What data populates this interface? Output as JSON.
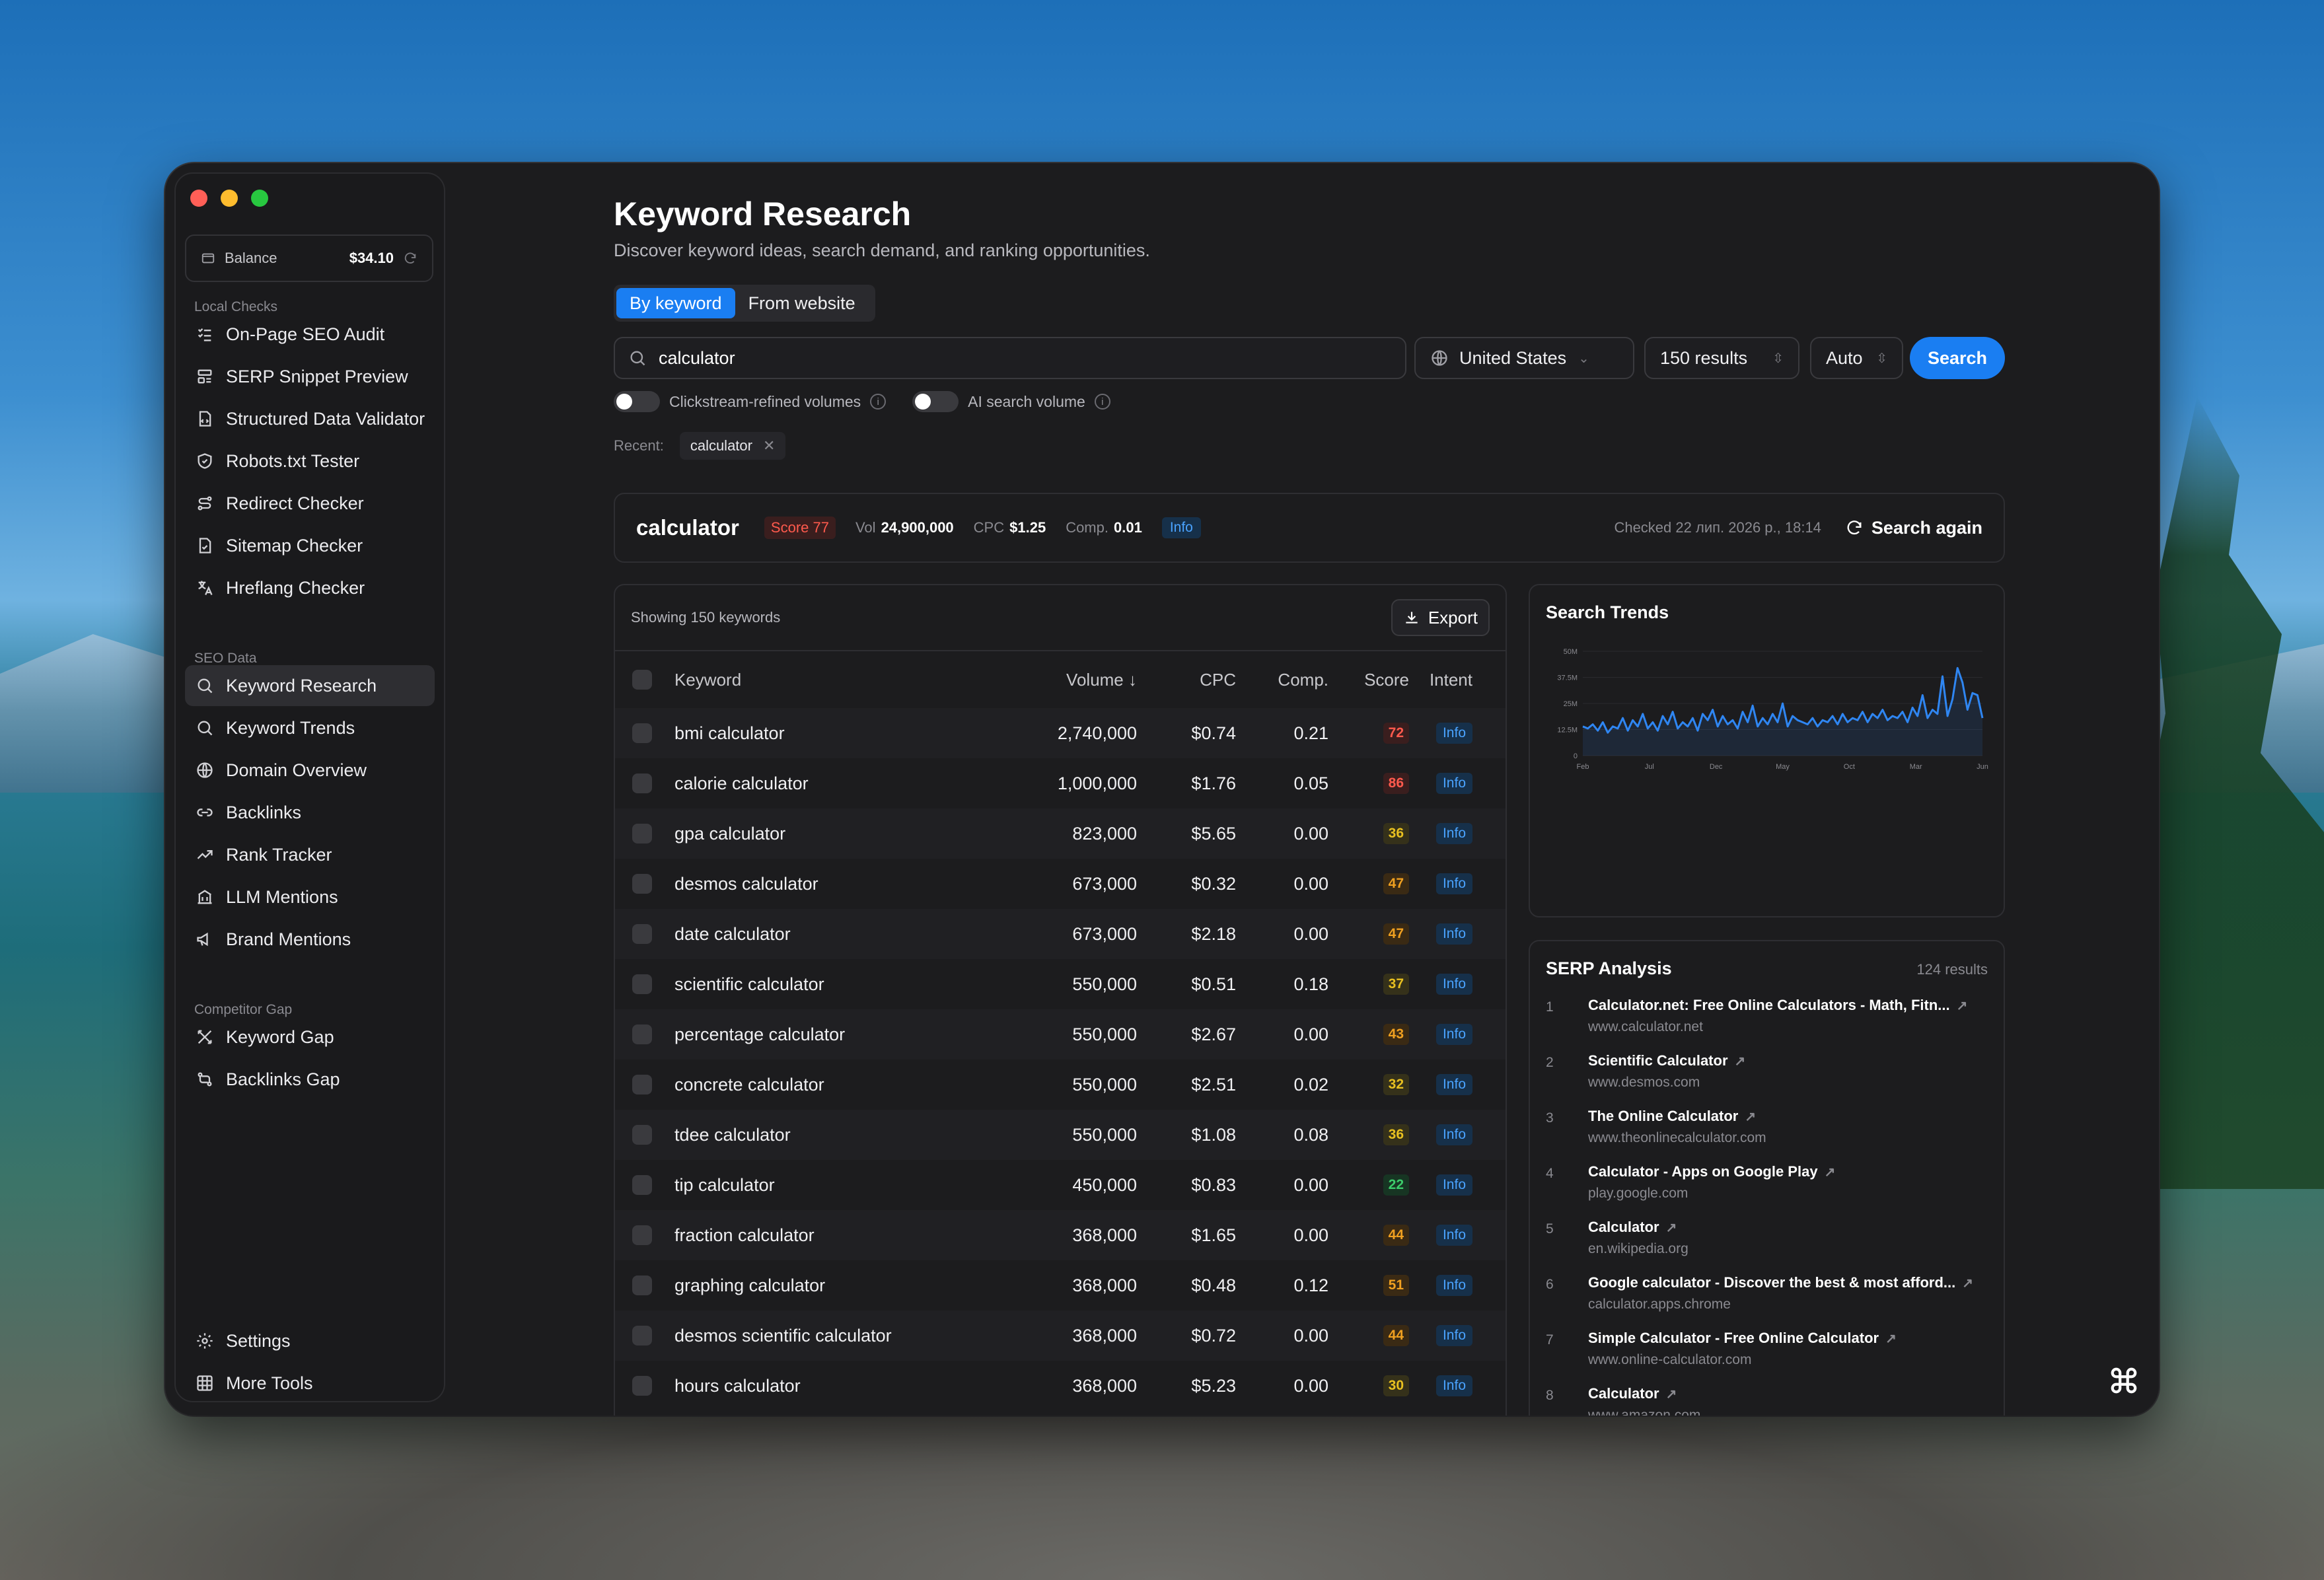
{
  "sidebar": {
    "balance_label": "Balance",
    "balance_value": "$34.10",
    "sections": [
      {
        "label": "Local Checks"
      },
      {
        "label": "SEO Data"
      },
      {
        "label": "Competitor Gap"
      }
    ],
    "local_checks": [
      "On-Page SEO Audit",
      "SERP Snippet Preview",
      "Structured Data Validator",
      "Robots.txt Tester",
      "Redirect Checker",
      "Sitemap Checker",
      "Hreflang Checker"
    ],
    "seo_data": [
      "Keyword Research",
      "Keyword Trends",
      "Domain Overview",
      "Backlinks",
      "Rank Tracker",
      "LLM Mentions",
      "Brand Mentions"
    ],
    "competitor_gap": [
      "Keyword Gap",
      "Backlinks Gap"
    ],
    "bottom": [
      "Settings",
      "More Tools"
    ]
  },
  "header": {
    "title": "Keyword Research",
    "subtitle": "Discover keyword ideas, search demand, and ranking opportunities."
  },
  "mode_tabs": [
    "By keyword",
    "From website"
  ],
  "search": {
    "value": "calculator",
    "country": "United States",
    "results": "150 results",
    "mode": "Auto",
    "button": "Search"
  },
  "toggles": {
    "clickstream": "Clickstream-refined volumes",
    "ai_volume": "AI search volume"
  },
  "recent": {
    "label": "Recent:",
    "chip": "calculator"
  },
  "summary": {
    "keyword": "calculator",
    "score": "Score 77",
    "vol_label": "Vol",
    "vol": "24,900,000",
    "cpc_label": "CPC",
    "cpc": "$1.25",
    "comp_label": "Comp.",
    "comp": "0.01",
    "intent": "Info",
    "checked": "Checked 22 лип. 2026 р., 18:14",
    "search_again": "Search again"
  },
  "table": {
    "showing": "Showing 150 keywords",
    "export": "Export",
    "headers": {
      "keyword": "Keyword",
      "volume": "Volume ↓",
      "cpc": "CPC",
      "comp": "Comp.",
      "score": "Score",
      "intent": "Intent"
    },
    "rows": [
      {
        "keyword": "bmi calculator",
        "volume": "2,740,000",
        "cpc": "$0.74",
        "comp": "0.21",
        "score": "72",
        "intent": "Info"
      },
      {
        "keyword": "calorie calculator",
        "volume": "1,000,000",
        "cpc": "$1.76",
        "comp": "0.05",
        "score": "86",
        "intent": "Info"
      },
      {
        "keyword": "gpa calculator",
        "volume": "823,000",
        "cpc": "$5.65",
        "comp": "0.00",
        "score": "36",
        "intent": "Info"
      },
      {
        "keyword": "desmos calculator",
        "volume": "673,000",
        "cpc": "$0.32",
        "comp": "0.00",
        "score": "47",
        "intent": "Info"
      },
      {
        "keyword": "date calculator",
        "volume": "673,000",
        "cpc": "$2.18",
        "comp": "0.00",
        "score": "47",
        "intent": "Info"
      },
      {
        "keyword": "scientific calculator",
        "volume": "550,000",
        "cpc": "$0.51",
        "comp": "0.18",
        "score": "37",
        "intent": "Info"
      },
      {
        "keyword": "percentage calculator",
        "volume": "550,000",
        "cpc": "$2.67",
        "comp": "0.00",
        "score": "43",
        "intent": "Info"
      },
      {
        "keyword": "concrete calculator",
        "volume": "550,000",
        "cpc": "$2.51",
        "comp": "0.02",
        "score": "32",
        "intent": "Info"
      },
      {
        "keyword": "tdee calculator",
        "volume": "550,000",
        "cpc": "$1.08",
        "comp": "0.08",
        "score": "36",
        "intent": "Info"
      },
      {
        "keyword": "tip calculator",
        "volume": "450,000",
        "cpc": "$0.83",
        "comp": "0.00",
        "score": "22",
        "intent": "Info"
      },
      {
        "keyword": "fraction calculator",
        "volume": "368,000",
        "cpc": "$1.65",
        "comp": "0.00",
        "score": "44",
        "intent": "Info"
      },
      {
        "keyword": "graphing calculator",
        "volume": "368,000",
        "cpc": "$0.48",
        "comp": "0.12",
        "score": "51",
        "intent": "Info"
      },
      {
        "keyword": "desmos scientific calculator",
        "volume": "368,000",
        "cpc": "$0.72",
        "comp": "0.00",
        "score": "44",
        "intent": "Info"
      },
      {
        "keyword": "hours calculator",
        "volume": "368,000",
        "cpc": "$5.23",
        "comp": "0.00",
        "score": "30",
        "intent": "Info"
      }
    ]
  },
  "score_colors": {
    "red": "#ff5a4d",
    "orange": "#f0a020",
    "yellow": "#e8c020",
    "green": "#3ccb6a"
  },
  "trends": {
    "title": "Search Trends",
    "y_ticks": [
      "50M",
      "37.5M",
      "25M",
      "12.5M",
      "0"
    ],
    "x_ticks": [
      "Feb",
      "Jul",
      "Dec",
      "May",
      "Oct",
      "Mar",
      "Jun"
    ],
    "line_color": "#2f86f2",
    "values": [
      14,
      13,
      15,
      12,
      16,
      11,
      14,
      13,
      18,
      12,
      17,
      14,
      20,
      13,
      16,
      12,
      19,
      15,
      21,
      13,
      16,
      14,
      18,
      12,
      20,
      17,
      22,
      14,
      19,
      15,
      17,
      13,
      21,
      16,
      24,
      14,
      18,
      15,
      20,
      16,
      25,
      14,
      19,
      17,
      16,
      15,
      18,
      14,
      17,
      16,
      19,
      15,
      20,
      16,
      18,
      17,
      21,
      16,
      20,
      18,
      22,
      17,
      19,
      18,
      21,
      16,
      23,
      19,
      29,
      18,
      22,
      20,
      38,
      19,
      27,
      42,
      35,
      22,
      30,
      29,
      18
    ]
  },
  "serp": {
    "title": "SERP Analysis",
    "count": "124 results",
    "items": [
      {
        "n": "1",
        "title": "Calculator.net: Free Online Calculators - Math, Fitn...",
        "url": "www.calculator.net"
      },
      {
        "n": "2",
        "title": "Scientific Calculator",
        "url": "www.desmos.com"
      },
      {
        "n": "3",
        "title": "The Online Calculator",
        "url": "www.theonlinecalculator.com"
      },
      {
        "n": "4",
        "title": "Calculator - Apps on Google Play",
        "url": "play.google.com"
      },
      {
        "n": "5",
        "title": "Calculator",
        "url": "en.wikipedia.org"
      },
      {
        "n": "6",
        "title": "Google calculator - Discover the best & most afford...",
        "url": "calculator.apps.chrome"
      },
      {
        "n": "7",
        "title": "Simple Calculator - Free Online Calculator",
        "url": "www.online-calculator.com"
      },
      {
        "n": "8",
        "title": "Calculator",
        "url": "www.amazon.com"
      }
    ]
  }
}
